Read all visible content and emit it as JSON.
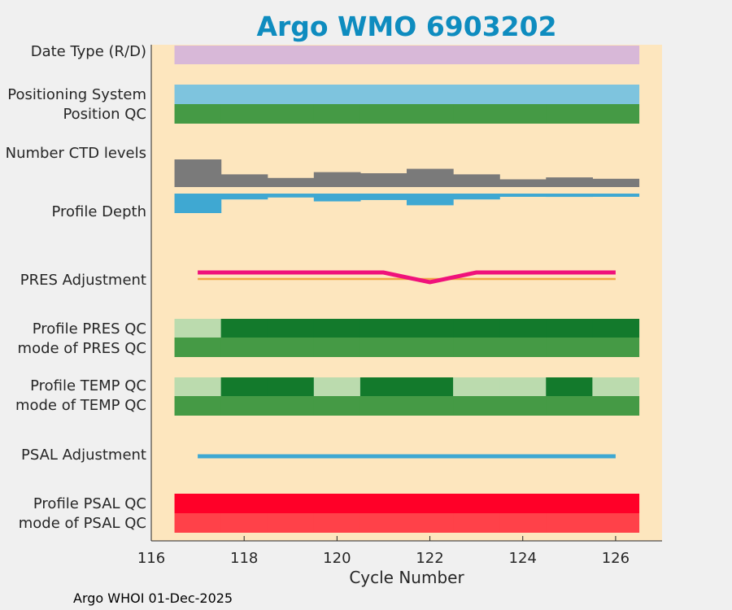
{
  "chart_data": {
    "type": "heatmap",
    "title": "Argo WMO 6903202",
    "xlabel": "Cycle Number",
    "ylabel": "",
    "xlim": [
      116,
      127
    ],
    "xticks": [
      116,
      118,
      120,
      122,
      124,
      126
    ],
    "grid": false,
    "cycles": [
      117,
      118,
      119,
      120,
      121,
      122,
      123,
      124,
      125,
      126
    ],
    "rows": [
      {
        "label": "Date Type (R/D)",
        "kind": "band",
        "colors": [
          "#d8b8d8",
          "#d8b8d8",
          "#d8b8d8",
          "#d8b8d8",
          "#d8b8d8",
          "#d8b8d8",
          "#d8b8d8",
          "#d8b8d8",
          "#d8b8d8",
          "#d8b8d8"
        ]
      },
      {
        "label": "Positioning System",
        "kind": "band",
        "colors": [
          "#7ec4de",
          "#7ec4de",
          "#7ec4de",
          "#7ec4de",
          "#7ec4de",
          "#7ec4de",
          "#7ec4de",
          "#7ec4de",
          "#7ec4de",
          "#7ec4de"
        ]
      },
      {
        "label": "Position QC",
        "kind": "band",
        "colors": [
          "#459a45",
          "#459a45",
          "#459a45",
          "#459a45",
          "#459a45",
          "#459a45",
          "#459a45",
          "#459a45",
          "#459a45",
          "#459a45"
        ]
      },
      {
        "label": "Number CTD levels",
        "kind": "histogram",
        "color": "#7a7a7a",
        "values": [
          1.0,
          0.46,
          0.33,
          0.54,
          0.5,
          0.66,
          0.46,
          0.28,
          0.35,
          0.3
        ]
      },
      {
        "label": "Profile Depth",
        "kind": "histogram-down",
        "color": "#3fa8d2",
        "values": [
          1.0,
          0.3,
          0.2,
          0.4,
          0.33,
          0.6,
          0.3,
          0.13,
          0.17,
          0.1
        ]
      },
      {
        "label": "PRES Adjustment",
        "kind": "line",
        "color": "#f0127b",
        "ref_color": "#f0a848",
        "values": [
          0,
          0,
          0,
          0,
          0,
          -1,
          0,
          0,
          0,
          0
        ]
      },
      {
        "label": "Profile PRES QC",
        "kind": "band",
        "colors": [
          "#bbdbae",
          "#137a2c",
          "#137a2c",
          "#137a2c",
          "#137a2c",
          "#137a2c",
          "#137a2c",
          "#137a2c",
          "#137a2c",
          "#137a2c"
        ]
      },
      {
        "label": "mode of PRES QC",
        "kind": "band",
        "colors": [
          "#459a45",
          "#459a45",
          "#459a45",
          "#459a45",
          "#459a45",
          "#459a45",
          "#459a45",
          "#459a45",
          "#459a45",
          "#459a45"
        ]
      },
      {
        "label": "Profile TEMP QC",
        "kind": "band",
        "colors": [
          "#bbdbae",
          "#137a2c",
          "#137a2c",
          "#bbdbae",
          "#137a2c",
          "#137a2c",
          "#bbdbae",
          "#bbdbae",
          "#137a2c",
          "#bbdbae"
        ]
      },
      {
        "label": "mode of TEMP QC",
        "kind": "band",
        "colors": [
          "#459a45",
          "#459a45",
          "#459a45",
          "#459a45",
          "#459a45",
          "#459a45",
          "#459a45",
          "#459a45",
          "#459a45",
          "#459a45"
        ]
      },
      {
        "label": "PSAL Adjustment",
        "kind": "line",
        "color": "#3fa8d2",
        "values": [
          0,
          0,
          0,
          0,
          0,
          0,
          0,
          0,
          0,
          0
        ]
      },
      {
        "label": "Profile PSAL QC",
        "kind": "band",
        "colors": [
          "#ff0028",
          "#ff0028",
          "#ff0028",
          "#ff0028",
          "#ff0028",
          "#ff0028",
          "#ff0028",
          "#ff0028",
          "#ff0028",
          "#ff0028"
        ]
      },
      {
        "label": "mode of PSAL QC",
        "kind": "band",
        "colors": [
          "#ff4149",
          "#ff4149",
          "#ff4149",
          "#ff4149",
          "#ff4149",
          "#ff4149",
          "#ff4149",
          "#ff4149",
          "#ff4149",
          "#ff4149"
        ]
      }
    ]
  },
  "footer": "Argo WHOI 01-Dec-2025",
  "colors": {
    "plot_background": "#fde6be",
    "figure_background": "#f0f0f0",
    "title": "#0e8cbf"
  }
}
